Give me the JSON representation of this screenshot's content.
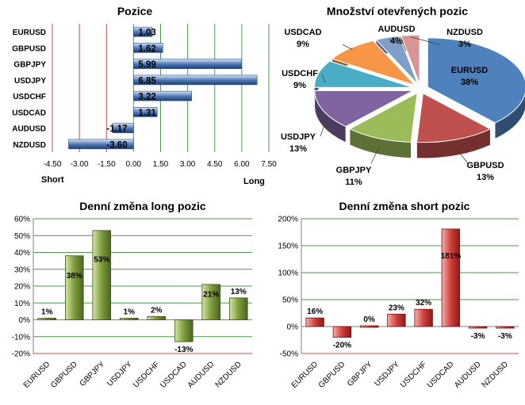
{
  "chart_data": [
    {
      "type": "bar",
      "orientation": "horizontal",
      "title": "Pozice",
      "categories": [
        "EURUSD",
        "GBPUSD",
        "GBPJPY",
        "USDJPY",
        "USDCHF",
        "USDCAD",
        "AUDUSD",
        "NZDUSD"
      ],
      "values": [
        1.03,
        1.62,
        5.99,
        6.85,
        3.22,
        1.31,
        -1.17,
        -3.6
      ],
      "value_labels": [
        "1.03",
        "1.62",
        "5.99",
        "6.85",
        "3.22",
        "1.31",
        "-1.17",
        "-3.60"
      ],
      "xlim": [
        -4.5,
        7.5
      ],
      "xticks": [
        "-4.50",
        "-3.00",
        "-1.50",
        "0.00",
        "1.50",
        "3.00",
        "4.50",
        "6.00",
        "7.50"
      ],
      "left_label": "Short",
      "right_label": "Long",
      "colors": {
        "bar": "#4a74b0",
        "bar_light": "#d6e4f4",
        "grid_left": "#c0504d",
        "grid_right": "#4d9a4d"
      }
    },
    {
      "type": "pie",
      "title": "Množství otevřených pozic",
      "labels": [
        "EURUSD",
        "GBPUSD",
        "GBPJPY",
        "USDJPY",
        "USDCHF",
        "USDCAD",
        "AUDUSD",
        "NZDUSD"
      ],
      "values": [
        38,
        13,
        11,
        13,
        9,
        9,
        4,
        3
      ],
      "value_labels": [
        "38%",
        "13%",
        "11%",
        "13%",
        "9%",
        "9%",
        "4%",
        "3%"
      ],
      "colors": [
        "#4f81bd",
        "#c0504d",
        "#9bbb59",
        "#8064a2",
        "#4bacc6",
        "#f79646",
        "#7f9ec9",
        "#d99594"
      ]
    },
    {
      "type": "bar",
      "title": "Denní změna long pozic",
      "categories": [
        "EURUSD",
        "GBPUSD",
        "GBPJPY",
        "USDJPY",
        "USDCHF",
        "USDCAD",
        "AUDUSD",
        "NZDUSD"
      ],
      "values": [
        1,
        38,
        53,
        1,
        2,
        -13,
        21,
        13
      ],
      "value_labels": [
        "1%",
        "38%",
        "53%",
        "1%",
        "2%",
        "-13%",
        "21%",
        "13%"
      ],
      "ylim": [
        -20,
        60
      ],
      "yticks": [
        60,
        50,
        40,
        30,
        20,
        10,
        0,
        -10,
        -20
      ],
      "ytick_labels": [
        "60%",
        "50%",
        "40%",
        "30%",
        "20%",
        "10%",
        "0%",
        "-10%",
        "-20%"
      ],
      "grid": true,
      "colors": {
        "bar": "#5e7d2a",
        "bar_light": "#c9dc9a",
        "grid": "#4d9a4d",
        "bottom_line": "#c0504d"
      }
    },
    {
      "type": "bar",
      "title": "Denní změna short pozic",
      "categories": [
        "EURUSD",
        "GBPUSD",
        "GBPJPY",
        "USDJPY",
        "USDCHF",
        "USDCAD",
        "AUDUSD",
        "NZDUSD"
      ],
      "values": [
        16,
        -20,
        0,
        23,
        32,
        181,
        -3,
        -3
      ],
      "value_labels": [
        "16%",
        "-20%",
        "0%",
        "23%",
        "32%",
        "181%",
        "-3%",
        "-3%"
      ],
      "ylim": [
        -50,
        200
      ],
      "yticks": [
        200,
        150,
        100,
        50,
        0,
        -50
      ],
      "ytick_labels": [
        "200%",
        "150%",
        "100%",
        "50%",
        "0%",
        "-50%"
      ],
      "grid": true,
      "colors": {
        "bar": "#c0504d",
        "bar_dark": "#8b1a18",
        "grid": "#4d9a4d",
        "bottom_line": "#c0504d"
      }
    }
  ]
}
